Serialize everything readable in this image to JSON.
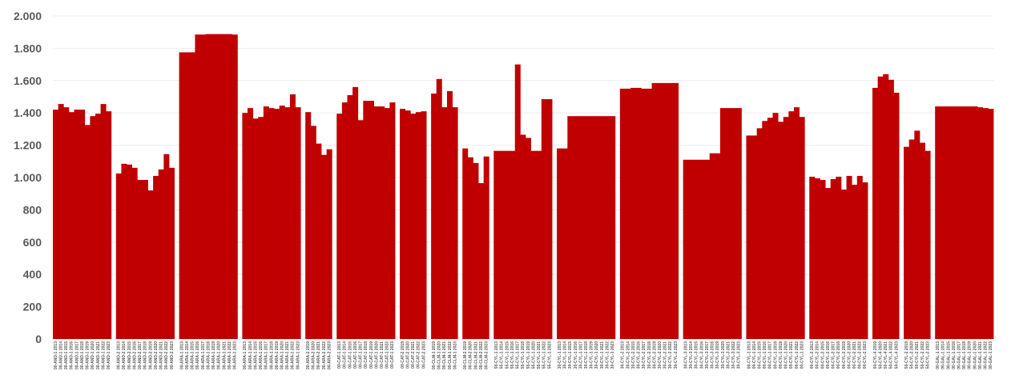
{
  "chart_data": {
    "type": "bar",
    "title": "",
    "xlabel": "",
    "ylabel": "",
    "ylim": [
      0,
      2000
    ],
    "yticks": [
      0,
      200,
      400,
      600,
      800,
      1000,
      1200,
      1400,
      1600,
      1800,
      2000
    ],
    "ytick_labels": [
      "0",
      "200",
      "400",
      "600",
      "800",
      "1.000",
      "1.200",
      "1.400",
      "1.600",
      "1.800",
      "2.000"
    ],
    "grid": true,
    "bar_color": "#c00000",
    "groups": [
      {
        "labels": [
          "00-AND-1 2013",
          "00-AND-1 2014",
          "00-AND-1 2015",
          "00-AND-1 2016",
          "00-AND-1 2017",
          "00-AND-1 2018",
          "00-AND-1 2019",
          "00-AND-1 2020",
          "00-AND-1 2021",
          "00-AND-1 2022",
          "00-AND-1 2023"
        ],
        "values": [
          1420,
          1455,
          1435,
          1405,
          1420,
          1420,
          1325,
          1380,
          1395,
          1455,
          1410
        ]
      },
      {
        "labels": [
          "00-AND-2 2013",
          "00-AND-2 2014",
          "00-AND-2 2015",
          "00-AND-2 2016",
          "00-AND-2 2017",
          "00-AND-2 2018",
          "00-AND-2 2019",
          "00-AND-2 2020",
          "00-AND-2 2021",
          "00-AND-2 2022",
          "00-AND-2 2023"
        ],
        "values": [
          1025,
          1085,
          1080,
          1060,
          985,
          985,
          920,
          1010,
          1050,
          1145,
          1060
        ]
      },
      {
        "labels": [
          "00-ARA-1 2013",
          "00-ARA-1 2014",
          "00-ARA-1 2015",
          "00-ARA-1 2016",
          "00-ARA-1 2017",
          "00-ARA-1 2018",
          "00-ARA-1 2019",
          "00-ARA-1 2020",
          "00-ARA-1 2021",
          "00-ARA-1 2022",
          "00-ARA-1 2023"
        ],
        "values": [
          1775,
          1775,
          1775,
          1885,
          1885,
          1888,
          1888,
          1888,
          1888,
          1888,
          1885
        ]
      },
      {
        "labels": [
          "00-ARA-1 2013",
          "00-ARA-1 2014",
          "00-ARA-1 2015",
          "00-ARA-1 2016",
          "00-ARA-1 2017",
          "00-ARA-1 2018",
          "00-ARA-1 2019",
          "00-ARA-1 2020",
          "00-ARA-1 2021",
          "00-ARA-1 2022",
          "00-ARA-1 2023"
        ],
        "values": [
          1400,
          1430,
          1365,
          1375,
          1440,
          1430,
          1425,
          1445,
          1435,
          1515,
          1435
        ]
      },
      {
        "labels": [
          "00-ARA-2 2019",
          "00-ARA-2 2020",
          "00-ARA-2 2021",
          "00-ARA-2 2022",
          "00-ARA-2 2023"
        ],
        "values": [
          1405,
          1320,
          1210,
          1140,
          1175
        ]
      },
      {
        "labels": [
          "00-CAT-1 2013",
          "00-CAT-1 2014",
          "00-CAT-1 2015",
          "00-CAT-1 2016",
          "00-CAT-1 2017",
          "00-CAT-1 2018",
          "00-CAT-1 2019",
          "00-CAT-1 2020",
          "00-CAT-1 2021",
          "00-CAT-1 2022",
          "00-CAT-1 2023"
        ],
        "values": [
          1395,
          1465,
          1510,
          1560,
          1355,
          1475,
          1475,
          1440,
          1440,
          1430,
          1465
        ]
      },
      {
        "labels": [
          "00-CAT-2 2019",
          "00-CAT-2 2020",
          "00-CAT-2 2021",
          "00-CAT-2 2022",
          "00-CAT-2 2023"
        ],
        "values": [
          1425,
          1415,
          1395,
          1405,
          1410
        ]
      },
      {
        "labels": [
          "00-CLM-1 2019",
          "00-CLM-1 2020",
          "00-CLM-1 2021",
          "00-CLM-1 2022",
          "00-CLM-1 2023"
        ],
        "values": [
          1520,
          1610,
          1435,
          1535,
          1435
        ]
      },
      {
        "labels": [
          "00-CLM-2 2019",
          "00-CLM-2 2020",
          "00-CLM-2 2021",
          "00-CLM-2 2022",
          "00-CLM-2 2023"
        ],
        "values": [
          1180,
          1125,
          1090,
          965,
          1130
        ]
      },
      {
        "labels": [
          "55-CYL-1 2013",
          "55-CYL-1 2014",
          "55-CYL-1 2015",
          "55-CYL-1 2016",
          "55-CYL-1 2017",
          "55-CYL-1 2018",
          "55-CYL-1 2019",
          "55-CYL-1 2020",
          "55-CYL-1 2021",
          "55-CYL-1 2022",
          "55-CYL-1 2023"
        ],
        "values": [
          1165,
          1165,
          1165,
          1165,
          1700,
          1265,
          1245,
          1165,
          1165,
          1485,
          1485
        ]
      },
      {
        "labels": [
          "30-CYL-1 2013",
          "30-CYL-1 2014",
          "30-CYL-1 2015",
          "30-CYL-1 2016",
          "30-CYL-1 2017",
          "30-CYL-1 2018",
          "30-CYL-1 2019",
          "30-CYL-1 2020",
          "30-CYL-1 2021",
          "30-CYL-1 2022",
          "30-CYL-1 2023"
        ],
        "values": [
          1180,
          1180,
          1380,
          1380,
          1380,
          1380,
          1380,
          1380,
          1380,
          1380,
          1380
        ]
      },
      {
        "labels": [
          "30-CYL-2 2013",
          "30-CYL-2 2014",
          "30-CYL-2 2015",
          "30-CYL-2 2016",
          "30-CYL-2 2017",
          "30-CYL-2 2018",
          "30-CYL-2 2019",
          "30-CYL-2 2020",
          "30-CYL-2 2021",
          "30-CYL-2 2022",
          "30-CYL-2 2023"
        ],
        "values": [
          1550,
          1550,
          1555,
          1555,
          1550,
          1550,
          1585,
          1585,
          1585,
          1585,
          1585
        ]
      },
      {
        "labels": [
          "30-CYL-3 2013",
          "30-CYL-3 2014",
          "30-CYL-3 2015",
          "30-CYL-3 2016",
          "30-CYL-3 2017",
          "30-CYL-3 2018",
          "30-CYL-3 2019",
          "30-CYL-3 2020",
          "30-CYL-3 2021",
          "30-CYL-3 2022",
          "30-CYL-3 2023"
        ],
        "values": [
          1110,
          1110,
          1110,
          1110,
          1110,
          1150,
          1150,
          1430,
          1430,
          1430,
          1430
        ]
      },
      {
        "labels": [
          "00-CYL-1 2013",
          "00-CYL-1 2014",
          "00-CYL-1 2015",
          "00-CYL-1 2016",
          "00-CYL-1 2017",
          "00-CYL-1 2018",
          "00-CYL-1 2019",
          "00-CYL-1 2020",
          "00-CYL-1 2021",
          "00-CYL-1 2022",
          "00-CYL-1 2023"
        ],
        "values": [
          1260,
          1260,
          1305,
          1350,
          1370,
          1400,
          1345,
          1375,
          1410,
          1435,
          1375
        ]
      },
      {
        "labels": [
          "00-CYL-2 2013",
          "00-CYL-2 2014",
          "00-CYL-2 2015",
          "00-CYL-2 2016",
          "00-CYL-2 2017",
          "00-CYL-2 2018",
          "00-CYL-2 2019",
          "00-CYL-2 2020",
          "00-CYL-2 2021",
          "00-CYL-2 2022",
          "00-CYL-2 2023"
        ],
        "values": [
          1005,
          995,
          985,
          935,
          990,
          1005,
          925,
          1010,
          955,
          1010,
          970
        ]
      },
      {
        "labels": [
          "50-CYL-4 2019",
          "50-CYL-4 2020",
          "50-CYL-4 2021",
          "50-CYL-4 2022",
          "50-CYL-4 2023"
        ],
        "values": [
          1555,
          1625,
          1640,
          1605,
          1525
        ]
      },
      {
        "labels": [
          "50-CYL-2 2019",
          "50-CYL-2 2020",
          "50-CYL-2 2021",
          "50-CYL-2 2022",
          "50-CYL-2 2023"
        ],
        "values": [
          1190,
          1235,
          1290,
          1215,
          1165
        ]
      },
      {
        "labels": [
          "00-GAL-1 2013",
          "00-GAL-1 2014",
          "00-GAL-1 2015",
          "00-GAL-1 2016",
          "00-GAL-1 2017",
          "00-GAL-1 2018",
          "00-GAL-1 2019",
          "00-GAL-1 2020",
          "00-GAL-1 2021",
          "00-GAL-1 2022",
          "00-GAL-1 2023"
        ],
        "values": [
          1440,
          1440,
          1440,
          1440,
          1440,
          1440,
          1440,
          1440,
          1435,
          1430,
          1425
        ]
      }
    ]
  }
}
